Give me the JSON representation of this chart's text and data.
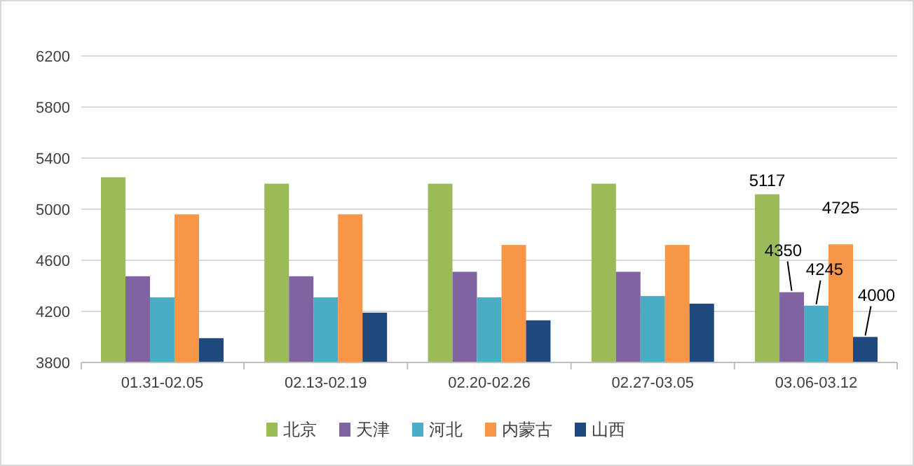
{
  "chart_data": {
    "type": "bar",
    "categories": [
      "01.31-02.05",
      "02.13-02.19",
      "02.20-02.26",
      "02.27-03.05",
      "03.06-03.12"
    ],
    "series": [
      {
        "name": "北京",
        "color": "#9bbb59",
        "values": [
          5250,
          5200,
          5200,
          5200,
          5117
        ],
        "value_labels": [
          null,
          null,
          null,
          null,
          "5117"
        ]
      },
      {
        "name": "天津",
        "color": "#8064a2",
        "values": [
          4475,
          4475,
          4510,
          4510,
          4350
        ],
        "value_labels": [
          null,
          null,
          null,
          null,
          "4350"
        ]
      },
      {
        "name": "河北",
        "color": "#4bacc6",
        "values": [
          4310,
          4310,
          4310,
          4320,
          4245
        ],
        "value_labels": [
          null,
          null,
          null,
          null,
          "4245"
        ]
      },
      {
        "name": "内蒙古",
        "color": "#f79646",
        "values": [
          4960,
          4960,
          4720,
          4720,
          4725
        ],
        "value_labels": [
          null,
          null,
          null,
          null,
          "4725"
        ]
      },
      {
        "name": "山西",
        "color": "#1f497d",
        "values": [
          3990,
          4190,
          4130,
          4260,
          4000
        ],
        "value_labels": [
          null,
          null,
          null,
          null,
          "4000"
        ]
      }
    ],
    "ylim": [
      3800,
      6200
    ],
    "yticks": [
      3800,
      4200,
      4600,
      5000,
      5400,
      5800,
      6200
    ],
    "grid": "y",
    "legend": "bottom"
  }
}
